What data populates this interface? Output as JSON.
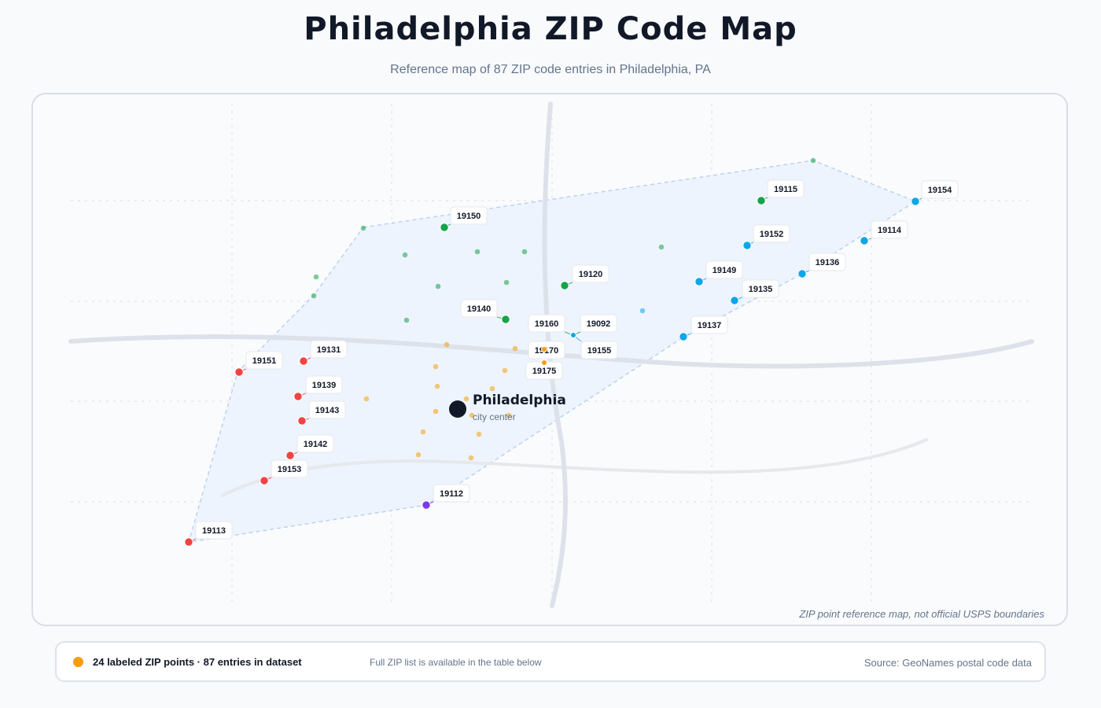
{
  "title": "Philadelphia ZIP Code Map",
  "subtitle": "Reference map of 87 ZIP code entries in Philadelphia, PA",
  "map": {
    "city_label": "Philadelphia",
    "city_sublabel": "city center",
    "footnote": "ZIP point reference map, not official USPS boundaries",
    "region_colors": {
      "northwest": "#16a34a",
      "northeast": "#0ea5e9",
      "west": "#ef4444",
      "center": "#f59e0b",
      "south": "#7c3aed"
    },
    "labeled_points": [
      {
        "zip": "19115",
        "region": "northwest"
      },
      {
        "zip": "19154",
        "region": "northeast"
      },
      {
        "zip": "19150",
        "region": "northwest"
      },
      {
        "zip": "19152",
        "region": "northeast"
      },
      {
        "zip": "19114",
        "region": "northeast"
      },
      {
        "zip": "19120",
        "region": "northwest"
      },
      {
        "zip": "19149",
        "region": "northeast"
      },
      {
        "zip": "19136",
        "region": "northeast"
      },
      {
        "zip": "19135",
        "region": "northeast"
      },
      {
        "zip": "19140",
        "region": "northwest"
      },
      {
        "zip": "19160",
        "region": "northwest"
      },
      {
        "zip": "19092",
        "region": "northwest"
      },
      {
        "zip": "19137",
        "region": "northeast"
      },
      {
        "zip": "19131",
        "region": "west"
      },
      {
        "zip": "19170",
        "region": "center"
      },
      {
        "zip": "19155",
        "region": "northeast"
      },
      {
        "zip": "19151",
        "region": "west"
      },
      {
        "zip": "19175",
        "region": "center"
      },
      {
        "zip": "19139",
        "region": "west"
      },
      {
        "zip": "19143",
        "region": "west"
      },
      {
        "zip": "19142",
        "region": "west"
      },
      {
        "zip": "19153",
        "region": "west"
      },
      {
        "zip": "19112",
        "region": "south"
      },
      {
        "zip": "19113",
        "region": "west"
      }
    ]
  },
  "legend": {
    "main": "24 labeled ZIP points · 87 entries in dataset",
    "note": "Full ZIP list is available in the table below",
    "source": "Source: GeoNames postal code data"
  }
}
